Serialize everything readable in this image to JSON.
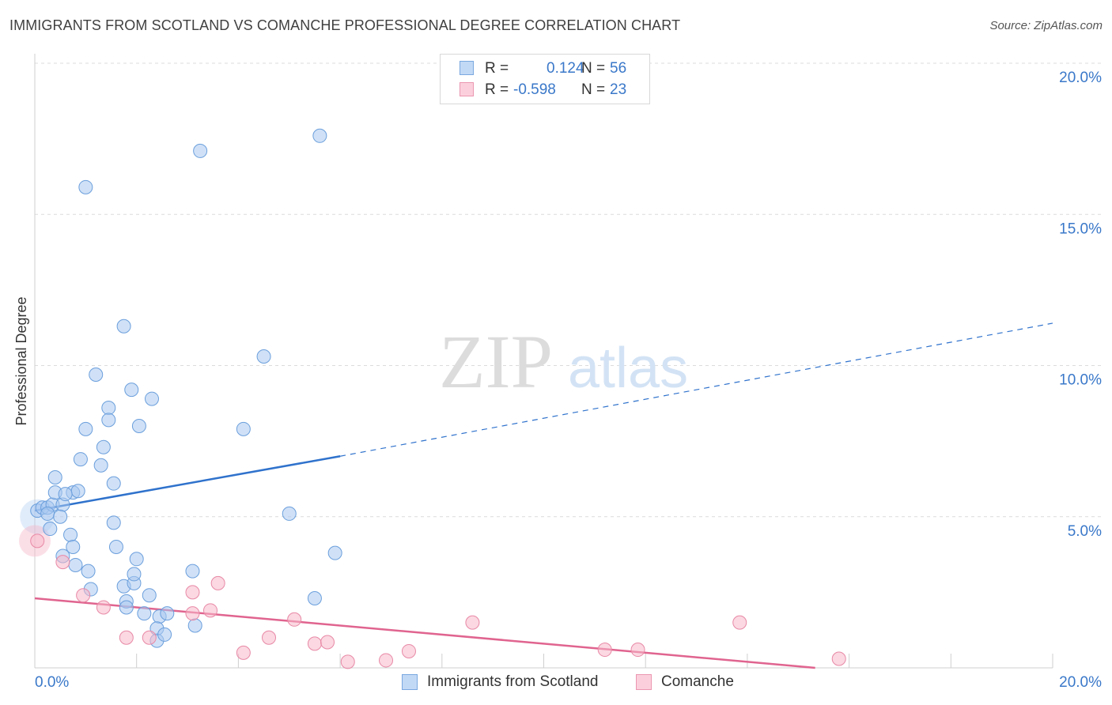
{
  "title": "IMMIGRANTS FROM SCOTLAND VS COMANCHE PROFESSIONAL DEGREE CORRELATION CHART",
  "source": "Source: ZipAtlas.com",
  "watermark": {
    "zip": "ZIP",
    "atlas": "atlas"
  },
  "legend": {
    "rows": [
      {
        "r_label": "R =",
        "r_value": "0.124",
        "n_label": "N =",
        "n_value": "56",
        "color": "#a9c9f0"
      },
      {
        "r_label": "R =",
        "r_value": "-0.598",
        "n_label": "N =",
        "n_value": "23",
        "color": "#f7b8ca"
      }
    ]
  },
  "bottom_legend": {
    "series1": "Immigrants from Scotland",
    "series2": "Comanche"
  },
  "colors": {
    "blue_fill": "#a9c9f0",
    "blue_stroke": "#6b9fdc",
    "blue_line": "#2f72cc",
    "pink_fill": "#f7b8ca",
    "pink_stroke": "#e889a6",
    "pink_line": "#e0648f",
    "axis_label": "#3a78c9",
    "grid": "#dcdcdc"
  },
  "chart_data": {
    "type": "scatter",
    "title": "IMMIGRANTS FROM SCOTLAND VS COMANCHE PROFESSIONAL DEGREE CORRELATION CHART",
    "xlabel": "",
    "ylabel": "Professional Degree",
    "xlim": [
      0,
      20
    ],
    "ylim": [
      0,
      20
    ],
    "x_tick_labels": [
      "0.0%",
      "20.0%"
    ],
    "y_tick_labels": [
      "5.0%",
      "10.0%",
      "15.0%",
      "20.0%"
    ],
    "y_tick_values": [
      5,
      10,
      15,
      20
    ],
    "x_ticks": [
      0,
      2,
      4,
      6,
      8,
      10,
      12,
      14,
      16,
      18,
      20
    ],
    "series": [
      {
        "name": "Immigrants from Scotland",
        "r": 0.124,
        "n": 56,
        "trend": {
          "x": [
            0,
            6
          ],
          "y": [
            5.2,
            7.0
          ],
          "extend_to": [
            20,
            11.4
          ]
        },
        "points": [
          [
            0.05,
            5.2
          ],
          [
            0.15,
            5.3
          ],
          [
            0.25,
            5.3
          ],
          [
            0.35,
            5.4
          ],
          [
            0.55,
            5.4
          ],
          [
            0.75,
            5.8
          ],
          [
            0.85,
            5.85
          ],
          [
            0.4,
            5.8
          ],
          [
            0.6,
            5.75
          ],
          [
            0.25,
            5.1
          ],
          [
            0.5,
            5.0
          ],
          [
            0.3,
            4.6
          ],
          [
            0.7,
            4.4
          ],
          [
            0.75,
            4.0
          ],
          [
            0.4,
            6.3
          ],
          [
            0.9,
            6.9
          ],
          [
            1.05,
            3.2
          ],
          [
            0.8,
            3.4
          ],
          [
            0.55,
            3.7
          ],
          [
            1.0,
            7.9
          ],
          [
            1.2,
            9.7
          ],
          [
            1.3,
            6.7
          ],
          [
            1.35,
            7.3
          ],
          [
            1.45,
            8.6
          ],
          [
            1.55,
            6.1
          ],
          [
            1.45,
            8.2
          ],
          [
            1.6,
            4.0
          ],
          [
            1.55,
            4.8
          ],
          [
            1.75,
            11.3
          ],
          [
            1.9,
            9.2
          ],
          [
            1.75,
            2.7
          ],
          [
            1.8,
            2.2
          ],
          [
            1.95,
            2.8
          ],
          [
            2.0,
            3.6
          ],
          [
            2.05,
            8.0
          ],
          [
            2.3,
            8.9
          ],
          [
            1.95,
            3.1
          ],
          [
            2.25,
            2.4
          ],
          [
            1.1,
            2.6
          ],
          [
            1.8,
            2.0
          ],
          [
            2.15,
            1.8
          ],
          [
            2.45,
            1.7
          ],
          [
            2.4,
            1.3
          ],
          [
            2.6,
            1.8
          ],
          [
            3.1,
            3.2
          ],
          [
            3.15,
            1.4
          ],
          [
            2.4,
            0.9
          ],
          [
            2.55,
            1.1
          ],
          [
            1.0,
            15.9
          ],
          [
            3.25,
            17.1
          ],
          [
            5.6,
            17.6
          ],
          [
            4.5,
            10.3
          ],
          [
            4.1,
            7.9
          ],
          [
            5.0,
            5.1
          ],
          [
            5.9,
            3.8
          ],
          [
            5.5,
            2.3
          ]
        ]
      },
      {
        "name": "Comanche",
        "r": -0.598,
        "n": 23,
        "trend": {
          "x": [
            0,
            20
          ],
          "y": [
            2.3,
            -0.7
          ]
        },
        "points": [
          [
            0.05,
            4.2
          ],
          [
            0.55,
            3.5
          ],
          [
            0.95,
            2.4
          ],
          [
            1.35,
            2.0
          ],
          [
            1.8,
            1.0
          ],
          [
            2.25,
            1.0
          ],
          [
            3.1,
            2.5
          ],
          [
            3.1,
            1.8
          ],
          [
            3.45,
            1.9
          ],
          [
            3.6,
            2.8
          ],
          [
            4.1,
            0.5
          ],
          [
            4.6,
            1.0
          ],
          [
            5.1,
            1.6
          ],
          [
            5.5,
            0.8
          ],
          [
            5.75,
            0.85
          ],
          [
            6.15,
            0.2
          ],
          [
            6.9,
            0.25
          ],
          [
            7.35,
            0.55
          ],
          [
            8.6,
            1.5
          ],
          [
            11.2,
            0.6
          ],
          [
            11.85,
            0.6
          ],
          [
            13.85,
            1.5
          ],
          [
            15.8,
            0.3
          ]
        ]
      }
    ]
  }
}
